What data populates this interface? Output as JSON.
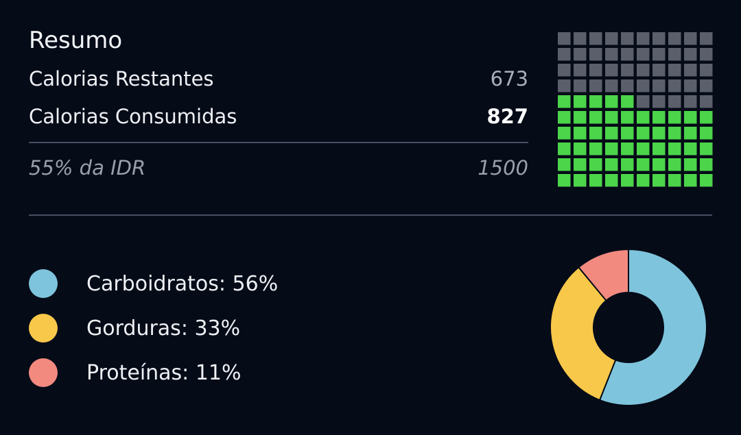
{
  "summary": {
    "title": "Resumo",
    "remaining_label": "Calorias Restantes",
    "remaining_value": "673",
    "consumed_label": "Calorias Consumidas",
    "consumed_value": "827",
    "idr_label": "55% da IDR",
    "idr_value": "1500"
  },
  "waffle": {
    "total_cells": 100,
    "filled_cells": 55,
    "filled_color": "#4cd44a",
    "empty_color": "#5a5f6b"
  },
  "macros": {
    "items": [
      {
        "label": "Carboidratos: 56%",
        "percent": 56,
        "color": "#7ec4dc"
      },
      {
        "label": "Gorduras: 33%",
        "percent": 33,
        "color": "#f8c84a"
      },
      {
        "label": "Proteínas: 11%",
        "percent": 11,
        "color": "#f28a80"
      }
    ]
  }
}
